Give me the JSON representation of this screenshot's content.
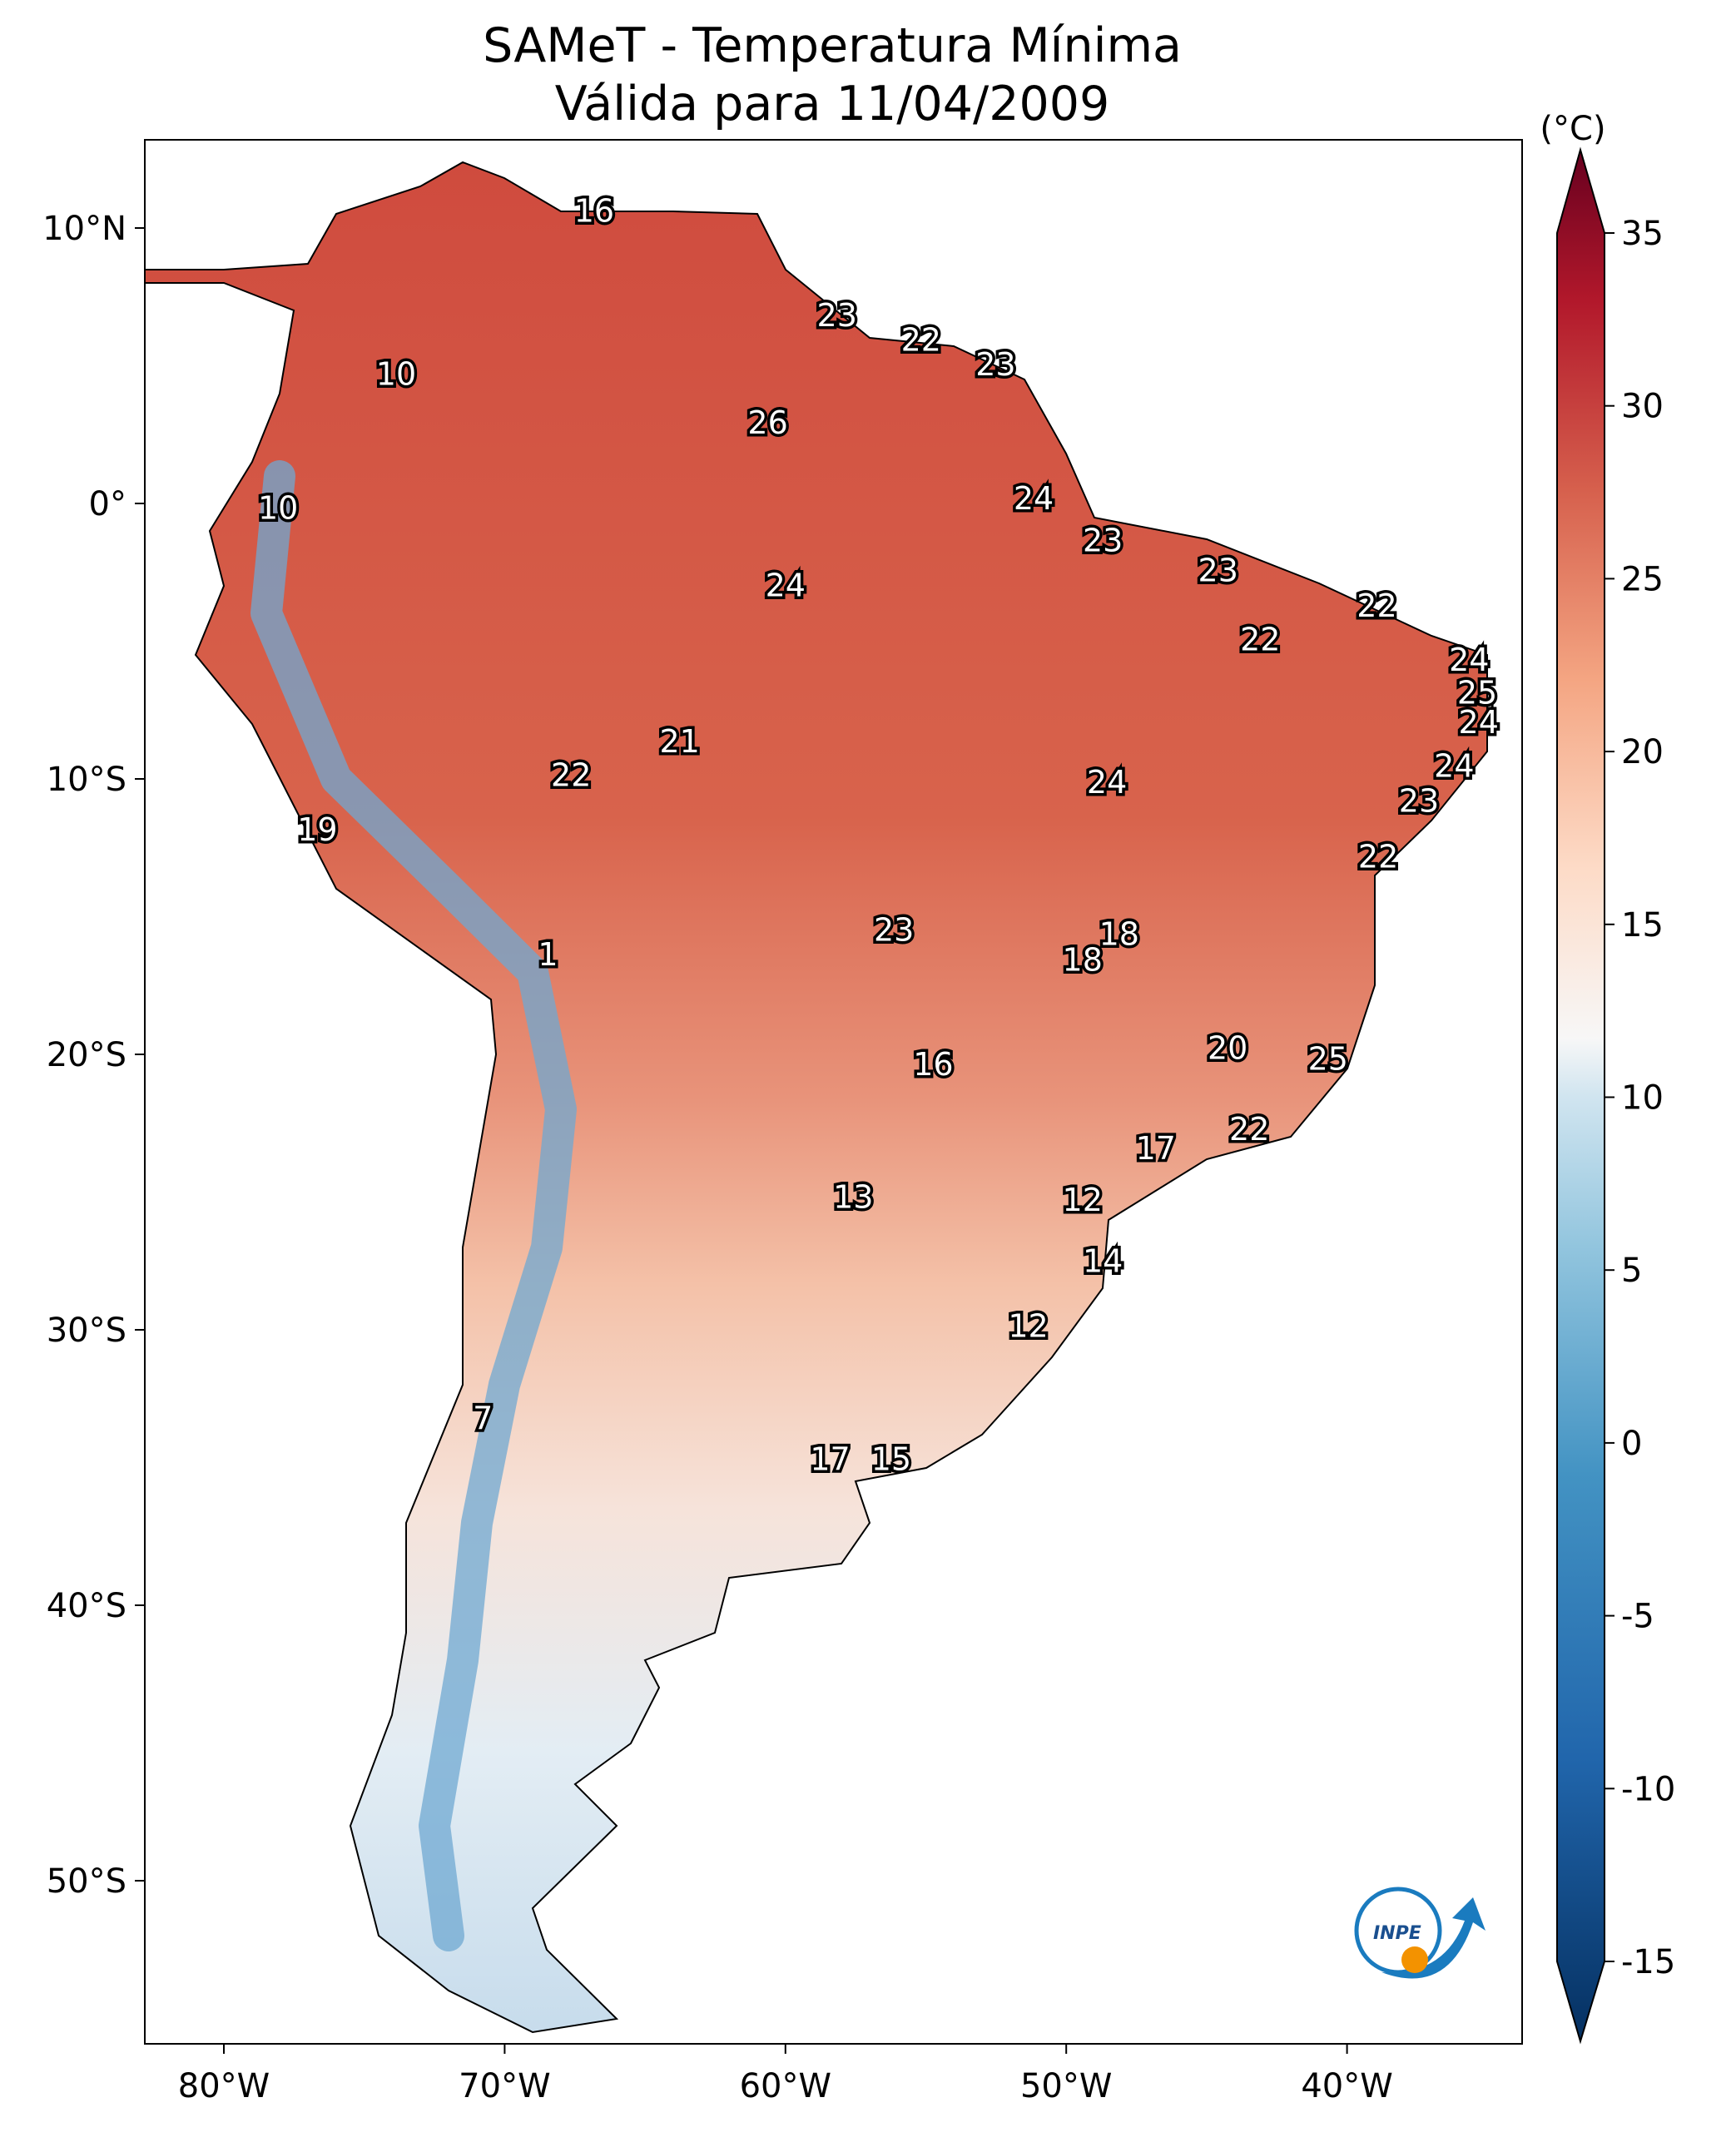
{
  "title": "SAMeT - Temperatura Mínima",
  "subtitle": "Válida para 11/04/2009",
  "map": {
    "lon_ticks": [
      "80°W",
      "70°W",
      "60°W",
      "50°W",
      "40°W"
    ],
    "lat_ticks": [
      "10°N",
      "0°",
      "10°S",
      "20°S",
      "30°S",
      "40°S",
      "50°S"
    ],
    "logo_text": "INPE",
    "station_values": [
      "16",
      "23",
      "22",
      "23",
      "10",
      "26",
      "24",
      "10",
      "23",
      "23",
      "24",
      "22",
      "22",
      "24",
      "25",
      "24",
      "21",
      "24",
      "22",
      "24",
      "23",
      "19",
      "22",
      "18",
      "23",
      "1",
      "18",
      "20",
      "16",
      "25",
      "22",
      "17",
      "13",
      "12",
      "14",
      "12",
      "7",
      "17",
      "15"
    ]
  },
  "colorbar": {
    "unit": "(°C)",
    "ticks": [
      "35",
      "30",
      "25",
      "20",
      "15",
      "10",
      "5",
      "0",
      "-5",
      "-10",
      "-15"
    ],
    "range": [
      -15,
      35
    ],
    "extend": "both",
    "colormap": "RdBu_r",
    "colors": {
      "low": "#053061",
      "mid": "#f7f7f7",
      "high": "#67001f"
    }
  }
}
